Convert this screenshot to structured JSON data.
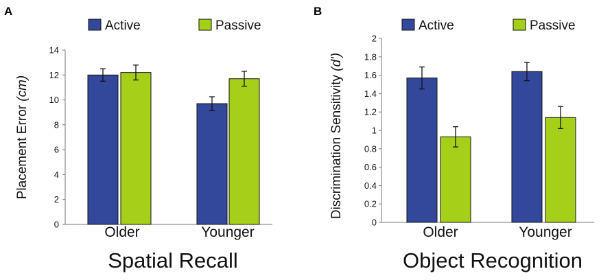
{
  "chart_data": [
    {
      "type": "bar",
      "panel_label": "A",
      "title": "Spatial Recall",
      "ylabel": "Placement Error",
      "ylabel_unit": "(cm)",
      "ylim": [
        0,
        14
      ],
      "yticks": [
        "0",
        "2",
        "4",
        "6",
        "8",
        "10",
        "12",
        "14"
      ],
      "categories": [
        "Older",
        "Younger"
      ],
      "series": [
        {
          "name": "Active",
          "color": "#33479b",
          "values": [
            12.0,
            9.7
          ],
          "errors": [
            0.5,
            0.55
          ]
        },
        {
          "name": "Passive",
          "color": "#a6cf1a",
          "values": [
            12.2,
            11.7
          ],
          "errors": [
            0.6,
            0.6
          ]
        }
      ]
    },
    {
      "type": "bar",
      "panel_label": "B",
      "title": "Object Recognition",
      "ylabel": "Discrimination Sensitivity",
      "ylabel_unit": "(d')",
      "ylim": [
        0,
        2
      ],
      "yticks": [
        "0",
        "0.2",
        "0.4",
        "0.6",
        "0.8",
        "1",
        "1.2",
        "1.4",
        "1.6",
        "1.8",
        "2"
      ],
      "categories": [
        "Older",
        "Younger"
      ],
      "series": [
        {
          "name": "Active",
          "color": "#33479b",
          "values": [
            1.57,
            1.64
          ],
          "errors": [
            0.12,
            0.1
          ]
        },
        {
          "name": "Passive",
          "color": "#a6cf1a",
          "values": [
            0.93,
            1.14
          ],
          "errors": [
            0.11,
            0.12
          ]
        }
      ]
    }
  ]
}
